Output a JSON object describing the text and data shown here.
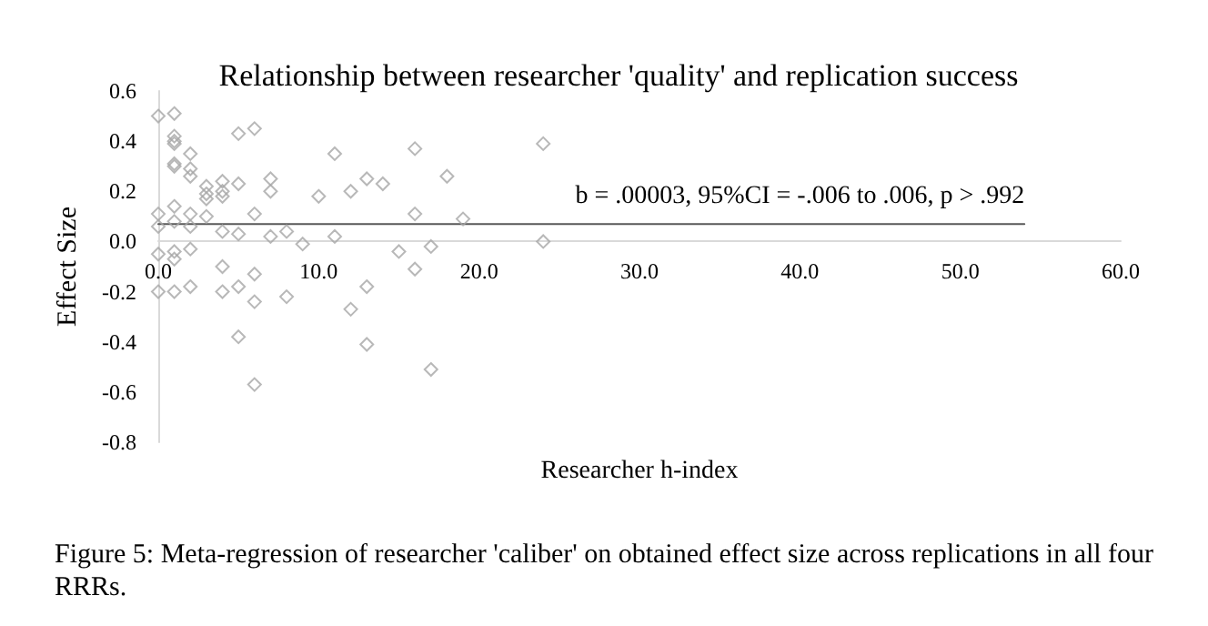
{
  "chart_data": {
    "type": "scatter",
    "title": "Relationship between researcher 'quality' and replication success",
    "xlabel": "Researcher h-index",
    "ylabel": "Effect Size",
    "annotations": [
      {
        "text": "b = .00003, 95%CI = -.006 to .006, p > .992",
        "x": 40,
        "y": 0.07
      },
      "Figure 5: Meta-regression of researcher 'caliber' on obtained effect size across replications in all four RRRs."
    ],
    "xlim": [
      0,
      60
    ],
    "ylim": [
      -0.8,
      0.6
    ],
    "xticks": [
      {
        "value": 0,
        "label": "0.0"
      },
      {
        "value": 10,
        "label": "10.0"
      },
      {
        "value": 20,
        "label": "20.0"
      },
      {
        "value": 30,
        "label": "30.0"
      },
      {
        "value": 40,
        "label": "40.0"
      },
      {
        "value": 50,
        "label": "50.0"
      },
      {
        "value": 60,
        "label": "60.0"
      }
    ],
    "yticks": [
      {
        "value": -0.8,
        "label": "-0.8"
      },
      {
        "value": -0.6,
        "label": "-0.6"
      },
      {
        "value": -0.4,
        "label": "-0.4"
      },
      {
        "value": -0.2,
        "label": "-0.2"
      },
      {
        "value": 0,
        "label": "0.0"
      },
      {
        "value": 0.2,
        "label": "0.2"
      },
      {
        "value": 0.4,
        "label": "0.4"
      },
      {
        "value": 0.6,
        "label": "0.6"
      }
    ],
    "grid": false,
    "marker": "diamond",
    "series": [
      {
        "color": "#a6a6a6",
        "x": [
          0,
          1,
          1,
          1,
          1,
          1,
          1,
          2,
          2,
          2,
          3,
          3,
          3,
          3,
          4,
          4,
          4,
          5,
          5,
          6,
          7,
          7,
          6,
          0,
          0,
          1,
          1,
          1,
          2,
          2,
          2,
          0,
          4,
          5,
          7,
          8,
          0,
          1,
          2,
          4,
          5,
          4,
          6,
          6,
          8,
          5,
          6,
          1,
          11,
          16,
          24,
          10,
          12,
          13,
          14,
          18,
          16,
          19,
          9,
          11,
          15,
          17,
          24,
          16,
          13,
          12,
          13,
          17
        ],
        "values": [
          0.5,
          0.51,
          0.42,
          0.4,
          0.39,
          0.31,
          0.3,
          0.35,
          0.29,
          0.26,
          0.22,
          0.19,
          0.17,
          0.1,
          0.24,
          0.2,
          0.18,
          0.43,
          0.23,
          0.45,
          0.25,
          0.2,
          0.11,
          0.11,
          0.06,
          0.14,
          0.08,
          -0.04,
          0.11,
          0.06,
          -0.03,
          -0.05,
          0.04,
          0.03,
          0.02,
          0.04,
          -0.2,
          -0.2,
          -0.18,
          -0.2,
          -0.18,
          -0.1,
          -0.13,
          -0.24,
          -0.22,
          -0.38,
          -0.57,
          -0.07,
          0.35,
          0.37,
          0.39,
          0.18,
          0.2,
          0.25,
          0.23,
          0.26,
          0.11,
          0.09,
          -0.01,
          0.02,
          -0.04,
          -0.02,
          0,
          -0.11,
          -0.18,
          -0.27,
          -0.41,
          -0.51
        ]
      },
      {
        "type": "line",
        "color": "#595959",
        "marker": "none",
        "line_style": "solid",
        "x": [
          0,
          54
        ],
        "values": [
          0.07,
          0.07
        ]
      }
    ]
  }
}
